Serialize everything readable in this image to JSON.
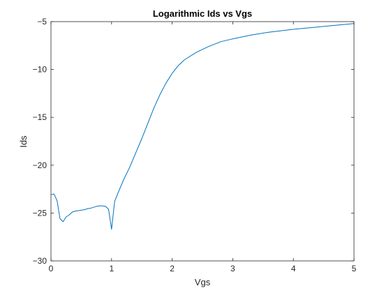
{
  "chart_data": {
    "type": "line",
    "title": "Logarithmic Ids vs Vgs",
    "xlabel": "Vgs",
    "ylabel": "Ids",
    "xlim": [
      0,
      5
    ],
    "ylim": [
      -30,
      -5
    ],
    "xticks": [
      0,
      1,
      2,
      3,
      4,
      5
    ],
    "xtick_labels": [
      "0",
      "1",
      "2",
      "3",
      "4",
      "5"
    ],
    "yticks": [
      -30,
      -25,
      -20,
      -15,
      -10,
      -5
    ],
    "ytick_labels": [
      "−30",
      "−25",
      "−20",
      "−15",
      "−10",
      "−5"
    ],
    "grid": false,
    "line_color": "#0072BD",
    "series": [
      {
        "x": [
          0,
          0.05,
          0.1,
          0.15,
          0.2,
          0.25,
          0.3,
          0.35,
          0.4,
          0.45,
          0.5,
          0.55,
          0.6,
          0.65,
          0.7,
          0.75,
          0.8,
          0.85,
          0.9,
          0.95,
          1.0,
          1.05,
          1.1,
          1.2,
          1.3,
          1.4,
          1.5,
          1.6,
          1.7,
          1.8,
          1.9,
          2.0,
          2.1,
          2.2,
          2.4,
          2.6,
          2.8,
          3.0,
          3.3,
          3.6,
          4.0,
          4.5,
          5.0
        ],
        "values": [
          -23.1,
          -23.0,
          -23.7,
          -25.6,
          -25.9,
          -25.4,
          -25.2,
          -24.9,
          -24.8,
          -24.75,
          -24.7,
          -24.65,
          -24.55,
          -24.5,
          -24.4,
          -24.3,
          -24.25,
          -24.25,
          -24.3,
          -24.6,
          -26.7,
          -23.8,
          -23.0,
          -21.5,
          -20.2,
          -18.7,
          -17.2,
          -15.6,
          -14.0,
          -12.6,
          -11.4,
          -10.4,
          -9.6,
          -9.0,
          -8.2,
          -7.6,
          -7.1,
          -6.8,
          -6.4,
          -6.1,
          -5.8,
          -5.5,
          -5.2
        ]
      }
    ]
  }
}
